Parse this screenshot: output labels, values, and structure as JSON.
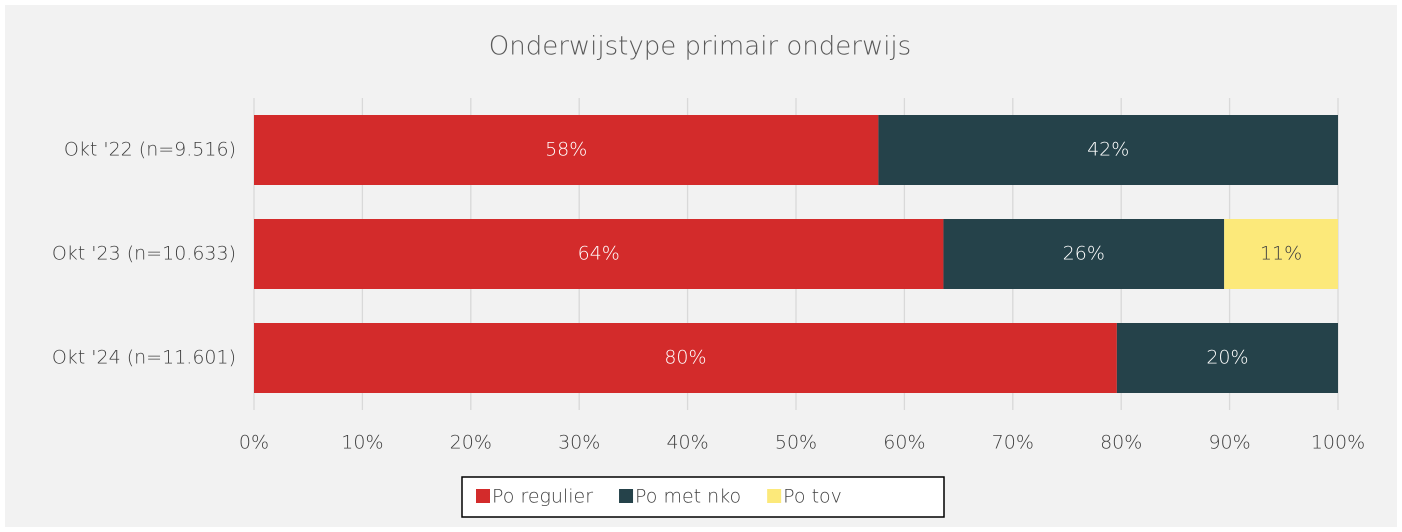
{
  "chart_data": {
    "type": "stacked_barh",
    "title": "Onderwijstype primair onderwijs",
    "categories": [
      "Okt '22 (n=9.516)",
      "Okt '23 (n=10.633)",
      "Okt '24 (n=11.601)"
    ],
    "series": [
      {
        "name": "Po regulier",
        "color": "#d32b2b",
        "values": [
          57.6,
          63.6,
          79.6
        ],
        "value_labels": [
          "58%",
          "64%",
          "80%"
        ]
      },
      {
        "name": "Po met nko",
        "color": "#25424a",
        "values": [
          42.4,
          25.9,
          20.4
        ],
        "value_labels": [
          "42%",
          "26%",
          "20%"
        ]
      },
      {
        "name": "Po tov",
        "color": "#fce97a",
        "values": [
          null,
          10.5,
          null
        ],
        "value_labels": [
          null,
          "11%",
          null
        ]
      }
    ],
    "xlim": [
      0,
      100
    ],
    "xticks": [
      {
        "value": 0,
        "label": "0%"
      },
      {
        "value": 10,
        "label": "10%"
      },
      {
        "value": 20,
        "label": "20%"
      },
      {
        "value": 30,
        "label": "30%"
      },
      {
        "value": 40,
        "label": "40%"
      },
      {
        "value": 50,
        "label": "50%"
      },
      {
        "value": 60,
        "label": "60%"
      },
      {
        "value": 70,
        "label": "70%"
      },
      {
        "value": 80,
        "label": "80%"
      },
      {
        "value": 90,
        "label": "90%"
      },
      {
        "value": 100,
        "label": "100%"
      }
    ],
    "grid": true,
    "legend": "bottom"
  }
}
